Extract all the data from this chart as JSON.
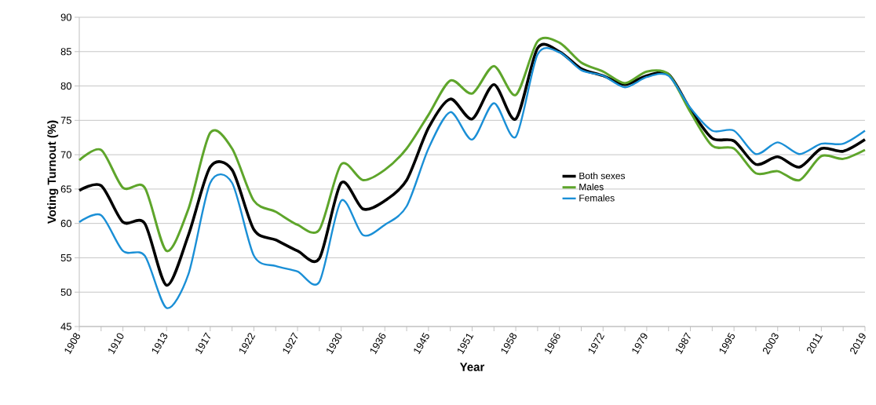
{
  "chart_data": {
    "type": "line",
    "xlabel": "Year",
    "ylabel": "Voting Turnout (%)",
    "categories": [
      "1908",
      null,
      "1910",
      null,
      "1913",
      null,
      "1917",
      null,
      "1922",
      null,
      "1927",
      null,
      "1930",
      null,
      "1936",
      null,
      "1945",
      null,
      "1951",
      null,
      "1958",
      null,
      "1966",
      null,
      "1972",
      null,
      "1979",
      null,
      "1987",
      null,
      "1995",
      null,
      "2003",
      null,
      "2011",
      null,
      "2019"
    ],
    "series": [
      {
        "name": "Both sexes",
        "color": "#000000",
        "values": [
          64.8,
          65.5,
          60.2,
          60,
          51,
          58.3,
          68.2,
          67.8,
          59.1,
          57.6,
          56,
          54.9,
          65.9,
          62.1,
          63.3,
          66.3,
          73.9,
          78.1,
          75.2,
          80.2,
          75.2,
          85.5,
          85,
          82.5,
          81.5,
          80.2,
          81.5,
          81.7,
          76.6,
          72.4,
          72,
          68.6,
          69.7,
          68.2,
          70.9,
          70.5,
          72.2
        ]
      },
      {
        "name": "Males",
        "color": "#5ea52b",
        "values": [
          69.2,
          70.7,
          65.2,
          65.2,
          56,
          62.1,
          73.2,
          70.9,
          63.3,
          61.7,
          59.8,
          59.1,
          68.6,
          66.3,
          67.8,
          70.9,
          75.8,
          80.8,
          78.9,
          82.9,
          78.7,
          86.5,
          86.3,
          83.4,
          82.1,
          80.4,
          82.1,
          81.7,
          76.2,
          71.3,
          70.9,
          67.3,
          67.6,
          66.3,
          69.8,
          69.4,
          70.7
        ]
      },
      {
        "name": "Females",
        "color": "#1a8fd6",
        "values": [
          60.2,
          61.2,
          56,
          55.3,
          47.7,
          52.6,
          65.9,
          65.9,
          55.3,
          53.8,
          53,
          51.5,
          63.3,
          58.3,
          59.8,
          62.5,
          70.9,
          76.2,
          72.2,
          77.5,
          72.6,
          84.6,
          84.9,
          82.3,
          81.5,
          79.8,
          81.3,
          81.5,
          76.8,
          73.5,
          73.5,
          70.1,
          71.8,
          70.1,
          71.6,
          71.6,
          73.5
        ]
      }
    ],
    "ylim": [
      45,
      90
    ],
    "yticks": [
      45,
      50,
      55,
      60,
      65,
      70,
      75,
      80,
      85,
      90
    ],
    "grid": "y",
    "legend": "center",
    "marker": "none",
    "line_style": "solid"
  }
}
